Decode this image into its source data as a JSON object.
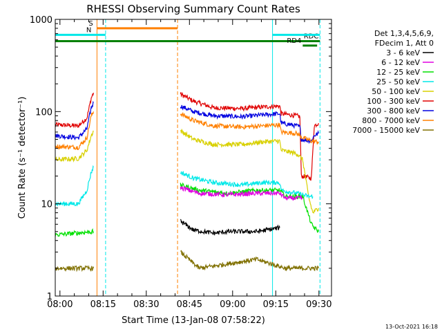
{
  "chart_data": {
    "type": "line",
    "title": "RHESSI Observing Summary Count Rates",
    "xlabel": "Start Time (13-Jan-08 07:58:22)",
    "ylabel": "Count Rate (s⁻¹ detector⁻¹)",
    "yscale": "log",
    "ylim": [
      1,
      1000
    ],
    "xlim_minutes": [
      0,
      96
    ],
    "x_ticks": [
      "08:00",
      "08:15",
      "08:30",
      "08:45",
      "09:00",
      "09:15",
      "09:30"
    ],
    "y_ticks": [
      "1",
      "10",
      "100",
      "1000"
    ],
    "legend": {
      "position": "right",
      "header": [
        "Det 1,3,4,5,6,9,",
        "FDecim 1, Att 0"
      ],
      "entries": [
        {
          "label": "3 - 6 keV",
          "color": "#000000"
        },
        {
          "label": "6 - 12 keV",
          "color": "#e000e0"
        },
        {
          "label": "12 - 25 keV",
          "color": "#00e000"
        },
        {
          "label": "25 - 50 keV",
          "color": "#00e8e8"
        },
        {
          "label": "50 - 100 keV",
          "color": "#d8d000"
        },
        {
          "label": "100 - 300 keV",
          "color": "#e00000"
        },
        {
          "label": "300 - 800 keV",
          "color": "#0000e0"
        },
        {
          "label": "800 - 7000 keV",
          "color": "#ff8000"
        },
        {
          "label": "7000 - 15000 keV",
          "color": "#807000"
        }
      ]
    },
    "series": [
      {
        "name": "100 - 300 keV",
        "color": "#e00000",
        "segments": [
          [
            [
              0,
              72
            ],
            [
              8,
              70
            ],
            [
              11,
              85
            ],
            [
              12.5,
              140
            ],
            [
              13.3,
              160
            ]
          ],
          [
            [
              43.5,
              155
            ],
            [
              48,
              130
            ],
            [
              55,
              110
            ],
            [
              65,
              108
            ],
            [
              72,
              112
            ],
            [
              78,
              115
            ],
            [
              78.5,
              95
            ],
            [
              84,
              90
            ],
            [
              85,
              88
            ],
            [
              85.5,
              20
            ],
            [
              89,
              19
            ],
            [
              90,
              70
            ],
            [
              91.5,
              75
            ]
          ]
        ]
      },
      {
        "name": "300 - 800 keV",
        "color": "#0000e0",
        "segments": [
          [
            [
              0,
              55
            ],
            [
              8,
              52
            ],
            [
              11,
              65
            ],
            [
              12.5,
              110
            ],
            [
              13.3,
              125
            ]
          ],
          [
            [
              43.5,
              115
            ],
            [
              48,
              100
            ],
            [
              55,
              90
            ],
            [
              65,
              88
            ],
            [
              72,
              92
            ],
            [
              78,
              95
            ],
            [
              78.5,
              75
            ],
            [
              84,
              70
            ],
            [
              85,
              68
            ],
            [
              85.5,
              50
            ],
            [
              89,
              48
            ],
            [
              90,
              55
            ],
            [
              91.5,
              58
            ]
          ]
        ]
      },
      {
        "name": "800 - 7000 keV",
        "color": "#ff8000",
        "segments": [
          [
            [
              0,
              42
            ],
            [
              8,
              41
            ],
            [
              11,
              52
            ],
            [
              12.5,
              90
            ],
            [
              13.3,
              100
            ]
          ],
          [
            [
              43.5,
              95
            ],
            [
              48,
              80
            ],
            [
              55,
              70
            ],
            [
              65,
              68
            ],
            [
              72,
              70
            ],
            [
              78,
              72
            ],
            [
              78.5,
              60
            ],
            [
              84,
              58
            ],
            [
              86,
              52
            ],
            [
              89,
              48
            ],
            [
              91.5,
              47
            ]
          ]
        ]
      },
      {
        "name": "50 - 100 keV",
        "color": "#d8d000",
        "segments": [
          [
            [
              0,
              30
            ],
            [
              8,
              31
            ],
            [
              11,
              38
            ],
            [
              12.5,
              55
            ],
            [
              13.3,
              62
            ]
          ],
          [
            [
              43.5,
              62
            ],
            [
              48,
              50
            ],
            [
              55,
              44
            ],
            [
              65,
              44
            ],
            [
              72,
              47
            ],
            [
              78,
              48
            ],
            [
              78.5,
              38
            ],
            [
              84,
              35
            ],
            [
              86,
              30
            ],
            [
              88,
              12
            ],
            [
              89.5,
              8
            ],
            [
              91.5,
              9
            ]
          ]
        ]
      },
      {
        "name": "25 - 50 keV",
        "color": "#00e8e8",
        "segments": [
          [
            [
              0,
              10
            ],
            [
              8,
              10
            ],
            [
              11,
              14
            ],
            [
              12.5,
              22
            ],
            [
              13.3,
              25
            ]
          ],
          [
            [
              43.5,
              22
            ],
            [
              48,
              19
            ],
            [
              55,
              17
            ],
            [
              65,
              16
            ],
            [
              72,
              17
            ],
            [
              78,
              17
            ],
            [
              78.5,
              14
            ],
            [
              84,
              13
            ],
            [
              88,
              12
            ],
            [
              89.5,
              12
            ]
          ]
        ]
      },
      {
        "name": "12 - 25 keV",
        "color": "#00e000",
        "segments": [
          [
            [
              0,
              4.6
            ],
            [
              13.3,
              5
            ]
          ],
          [
            [
              43.5,
              16
            ],
            [
              50,
              14
            ],
            [
              60,
              13
            ],
            [
              70,
              14
            ],
            [
              78,
              14
            ],
            [
              80,
              12
            ],
            [
              86,
              12
            ],
            [
              89,
              6
            ],
            [
              90,
              5.5
            ],
            [
              91.5,
              5
            ]
          ]
        ]
      },
      {
        "name": "6 - 12 keV",
        "color": "#e000e0",
        "segments": [
          [
            [
              43.5,
              15
            ],
            [
              50,
              13
            ],
            [
              60,
              12.5
            ],
            [
              70,
              13
            ],
            [
              78,
              13
            ],
            [
              80,
              11.5
            ],
            [
              86,
              11.5
            ]
          ]
        ]
      },
      {
        "name": "3 - 6 keV",
        "color": "#000000",
        "segments": [
          [
            [
              43.5,
              6.5
            ],
            [
              48,
              5.2
            ],
            [
              55,
              4.8
            ],
            [
              60,
              5
            ],
            [
              70,
              5
            ],
            [
              78,
              5.5
            ]
          ]
        ]
      },
      {
        "name": "7000 - 15000 keV",
        "color": "#807000",
        "segments": [
          [
            [
              0,
              2
            ],
            [
              13.3,
              2
            ]
          ],
          [
            [
              43.5,
              3
            ],
            [
              50,
              2
            ],
            [
              70,
              2.5
            ],
            [
              80,
              2
            ],
            [
              91.5,
              2
            ]
          ]
        ]
      }
    ],
    "flags": [
      {
        "label": "S",
        "color": "#ff8000",
        "x_start": 14.5,
        "x_end": 42.5,
        "y": 800
      },
      {
        "label": "N",
        "color": "#00e8e8",
        "x_start": 0,
        "x_end": 17.5,
        "y": 680
      },
      {
        "label": "RDC",
        "color": "#008000",
        "x_start": 0,
        "x_end": 92,
        "y": 580
      },
      {
        "label": "RD4",
        "color": "#008000",
        "x_start": 86,
        "x_end": 91,
        "y": 520
      }
    ],
    "vertical_lines": [
      {
        "x": 14.5,
        "color": "#ff8000",
        "style": "solid"
      },
      {
        "x": 42.5,
        "color": "#ff8000",
        "style": "dashed"
      },
      {
        "x": 17.5,
        "color": "#00e8e8",
        "style": "dashed"
      },
      {
        "x": 75.5,
        "color": "#00e8e8",
        "style": "solid"
      },
      {
        "x": 92,
        "color": "#00e8e8",
        "style": "dashed"
      }
    ],
    "footer_date": "13-Oct-2021 16:18"
  }
}
